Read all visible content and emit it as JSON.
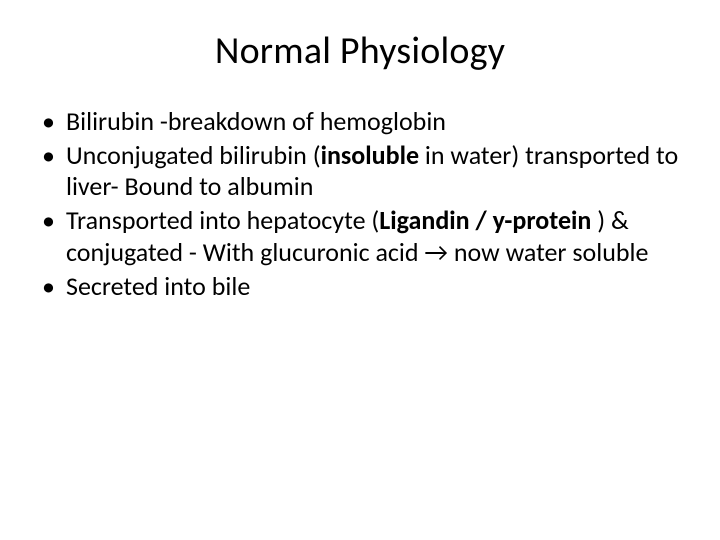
{
  "slide": {
    "title": "Normal Physiology",
    "title_fontsize": 38,
    "body_fontsize": 26,
    "background_color": "#ffffff",
    "text_color": "#000000",
    "font_family": "Calibri",
    "bullets": [
      {
        "runs": [
          {
            "text": "Bilirubin -breakdown of hemoglobin",
            "bold": false
          }
        ]
      },
      {
        "runs": [
          {
            "text": "Unconjugated bilirubin (",
            "bold": false
          },
          {
            "text": "insoluble",
            "bold": true
          },
          {
            "text": " in water) transported to liver- Bound to albumin",
            "bold": false
          }
        ]
      },
      {
        "runs": [
          {
            "text": "Transported into hepatocyte (",
            "bold": false
          },
          {
            "text": "Ligandin / y-protein ",
            "bold": true
          },
          {
            "text": ") & conjugated - With glucuronic acid → now water soluble",
            "bold": false
          }
        ]
      },
      {
        "runs": [
          {
            "text": "Secreted into bile",
            "bold": false
          }
        ]
      }
    ]
  }
}
